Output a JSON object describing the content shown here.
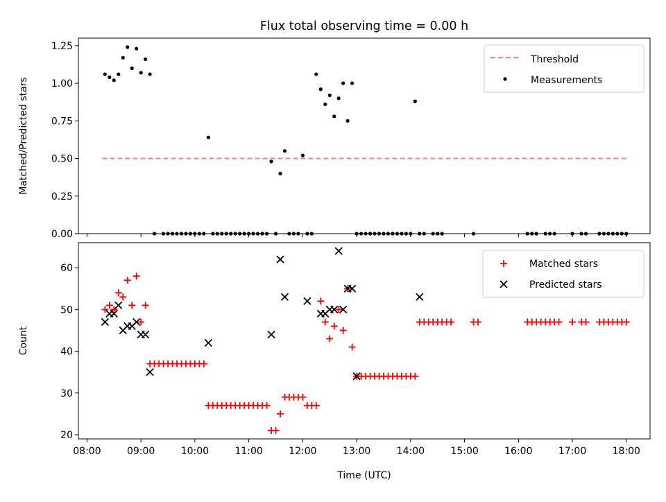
{
  "figure": {
    "title": "Flux total observing time = 0.00 h",
    "xlabel": "Time (UTC)",
    "xticks": [
      "08:00",
      "09:00",
      "10:00",
      "11:00",
      "12:00",
      "13:00",
      "14:00",
      "15:00",
      "16:00",
      "17:00",
      "18:00"
    ]
  },
  "colors": {
    "threshold": "#ff7f7f",
    "measurements": "#000000",
    "matched": "#ff0000",
    "predicted": "#000000"
  },
  "chart_data": [
    {
      "type": "scatter",
      "ylabel": "Matched/Predicted stars",
      "ylim": [
        0,
        1.3
      ],
      "yticks": [
        "0.00",
        "0.25",
        "0.50",
        "0.75",
        "1.00",
        "1.25"
      ],
      "legend_position": "top-right",
      "threshold": {
        "name": "Threshold",
        "x": [
          "08:17",
          "18:00"
        ],
        "y": 0.5
      },
      "series": [
        {
          "name": "Measurements",
          "points": [
            [
              "08:20",
              1.06
            ],
            [
              "08:25",
              1.04
            ],
            [
              "08:30",
              1.02
            ],
            [
              "08:35",
              1.06
            ],
            [
              "08:40",
              1.17
            ],
            [
              "08:45",
              1.24
            ],
            [
              "08:50",
              1.1
            ],
            [
              "08:55",
              1.23
            ],
            [
              "09:00",
              1.07
            ],
            [
              "09:05",
              1.16
            ],
            [
              "09:10",
              1.06
            ],
            [
              "09:15",
              0
            ],
            [
              "09:25",
              0
            ],
            [
              "09:30",
              0
            ],
            [
              "09:35",
              0
            ],
            [
              "09:40",
              0
            ],
            [
              "09:45",
              0
            ],
            [
              "09:50",
              0
            ],
            [
              "09:55",
              0
            ],
            [
              "10:00",
              0
            ],
            [
              "10:05",
              0
            ],
            [
              "10:10",
              0
            ],
            [
              "10:15",
              0.64
            ],
            [
              "10:20",
              0
            ],
            [
              "10:25",
              0
            ],
            [
              "10:30",
              0
            ],
            [
              "10:35",
              0
            ],
            [
              "10:40",
              0
            ],
            [
              "10:45",
              0
            ],
            [
              "10:50",
              0
            ],
            [
              "10:55",
              0
            ],
            [
              "11:00",
              0
            ],
            [
              "11:05",
              0
            ],
            [
              "11:10",
              0
            ],
            [
              "11:15",
              0
            ],
            [
              "11:20",
              0
            ],
            [
              "11:25",
              0.48
            ],
            [
              "11:30",
              0
            ],
            [
              "11:35",
              0.4
            ],
            [
              "11:40",
              0.55
            ],
            [
              "11:45",
              0
            ],
            [
              "11:50",
              0
            ],
            [
              "11:55",
              0
            ],
            [
              "12:00",
              0.52
            ],
            [
              "12:05",
              0
            ],
            [
              "12:10",
              0
            ],
            [
              "12:15",
              1.06
            ],
            [
              "12:20",
              0.96
            ],
            [
              "12:25",
              0.86
            ],
            [
              "12:30",
              0.92
            ],
            [
              "12:35",
              0.78
            ],
            [
              "12:40",
              0.9
            ],
            [
              "12:45",
              1.0
            ],
            [
              "12:50",
              0.75
            ],
            [
              "12:55",
              1.0
            ],
            [
              "13:00",
              0
            ],
            [
              "13:05",
              0
            ],
            [
              "13:10",
              0
            ],
            [
              "13:15",
              0
            ],
            [
              "13:20",
              0
            ],
            [
              "13:25",
              0
            ],
            [
              "13:30",
              0
            ],
            [
              "13:35",
              0
            ],
            [
              "13:40",
              0
            ],
            [
              "13:45",
              0
            ],
            [
              "13:50",
              0
            ],
            [
              "13:55",
              0
            ],
            [
              "14:00",
              0
            ],
            [
              "14:05",
              0.88
            ],
            [
              "14:10",
              0
            ],
            [
              "14:15",
              0
            ],
            [
              "14:25",
              0
            ],
            [
              "14:30",
              0
            ],
            [
              "14:35",
              0
            ],
            [
              "15:10",
              0
            ],
            [
              "16:10",
              0
            ],
            [
              "16:15",
              0
            ],
            [
              "16:20",
              0
            ],
            [
              "16:30",
              0
            ],
            [
              "16:35",
              0
            ],
            [
              "16:40",
              0
            ],
            [
              "17:00",
              0
            ],
            [
              "17:10",
              0
            ],
            [
              "17:15",
              0
            ],
            [
              "17:30",
              0
            ],
            [
              "17:35",
              0
            ],
            [
              "17:40",
              0
            ],
            [
              "17:45",
              0
            ],
            [
              "17:50",
              0
            ],
            [
              "17:55",
              0
            ],
            [
              "18:00",
              0
            ]
          ]
        }
      ]
    },
    {
      "type": "scatter",
      "ylabel": "Count",
      "ylim": [
        19,
        66
      ],
      "yticks": [
        "20",
        "30",
        "40",
        "50",
        "60"
      ],
      "legend_position": "top-right",
      "series": [
        {
          "name": "Matched stars",
          "marker": "plus",
          "points": [
            [
              "08:20",
              50
            ],
            [
              "08:25",
              51
            ],
            [
              "08:30",
              50
            ],
            [
              "08:35",
              54
            ],
            [
              "08:40",
              53
            ],
            [
              "08:45",
              57
            ],
            [
              "08:50",
              51
            ],
            [
              "08:55",
              58
            ],
            [
              "09:00",
              47
            ],
            [
              "09:05",
              51
            ],
            [
              "09:10",
              37
            ],
            [
              "09:15",
              37
            ],
            [
              "09:20",
              37
            ],
            [
              "09:25",
              37
            ],
            [
              "09:30",
              37
            ],
            [
              "09:35",
              37
            ],
            [
              "09:40",
              37
            ],
            [
              "09:45",
              37
            ],
            [
              "09:50",
              37
            ],
            [
              "09:55",
              37
            ],
            [
              "10:00",
              37
            ],
            [
              "10:05",
              37
            ],
            [
              "10:10",
              37
            ],
            [
              "10:15",
              27
            ],
            [
              "10:20",
              27
            ],
            [
              "10:25",
              27
            ],
            [
              "10:30",
              27
            ],
            [
              "10:35",
              27
            ],
            [
              "10:40",
              27
            ],
            [
              "10:45",
              27
            ],
            [
              "10:50",
              27
            ],
            [
              "10:55",
              27
            ],
            [
              "11:00",
              27
            ],
            [
              "11:05",
              27
            ],
            [
              "11:10",
              27
            ],
            [
              "11:15",
              27
            ],
            [
              "11:20",
              27
            ],
            [
              "11:25",
              21
            ],
            [
              "11:30",
              21
            ],
            [
              "11:35",
              25
            ],
            [
              "11:40",
              29
            ],
            [
              "11:45",
              29
            ],
            [
              "11:50",
              29
            ],
            [
              "11:55",
              29
            ],
            [
              "12:00",
              29
            ],
            [
              "12:05",
              27
            ],
            [
              "12:10",
              27
            ],
            [
              "12:15",
              27
            ],
            [
              "12:20",
              52
            ],
            [
              "12:25",
              47
            ],
            [
              "12:30",
              43
            ],
            [
              "12:35",
              46
            ],
            [
              "12:40",
              50
            ],
            [
              "12:45",
              45
            ],
            [
              "12:50",
              55
            ],
            [
              "12:55",
              41
            ],
            [
              "13:00",
              34
            ],
            [
              "13:05",
              34
            ],
            [
              "13:10",
              34
            ],
            [
              "13:15",
              34
            ],
            [
              "13:20",
              34
            ],
            [
              "13:25",
              34
            ],
            [
              "13:30",
              34
            ],
            [
              "13:35",
              34
            ],
            [
              "13:40",
              34
            ],
            [
              "13:45",
              34
            ],
            [
              "13:50",
              34
            ],
            [
              "13:55",
              34
            ],
            [
              "14:00",
              34
            ],
            [
              "14:05",
              34
            ],
            [
              "14:10",
              47
            ],
            [
              "14:15",
              47
            ],
            [
              "14:20",
              47
            ],
            [
              "14:25",
              47
            ],
            [
              "14:30",
              47
            ],
            [
              "14:35",
              47
            ],
            [
              "14:40",
              47
            ],
            [
              "14:45",
              47
            ],
            [
              "15:10",
              47
            ],
            [
              "15:15",
              47
            ],
            [
              "16:10",
              47
            ],
            [
              "16:15",
              47
            ],
            [
              "16:20",
              47
            ],
            [
              "16:25",
              47
            ],
            [
              "16:30",
              47
            ],
            [
              "16:35",
              47
            ],
            [
              "16:40",
              47
            ],
            [
              "16:45",
              47
            ],
            [
              "17:00",
              47
            ],
            [
              "17:10",
              47
            ],
            [
              "17:15",
              47
            ],
            [
              "17:30",
              47
            ],
            [
              "17:35",
              47
            ],
            [
              "17:40",
              47
            ],
            [
              "17:45",
              47
            ],
            [
              "17:50",
              47
            ],
            [
              "17:55",
              47
            ],
            [
              "18:00",
              47
            ]
          ]
        },
        {
          "name": "Predicted stars",
          "marker": "x",
          "points": [
            [
              "08:20",
              47
            ],
            [
              "08:25",
              49
            ],
            [
              "08:30",
              49
            ],
            [
              "08:35",
              51
            ],
            [
              "08:40",
              45
            ],
            [
              "08:45",
              46
            ],
            [
              "08:50",
              46
            ],
            [
              "08:55",
              47
            ],
            [
              "09:00",
              44
            ],
            [
              "09:05",
              44
            ],
            [
              "09:10",
              35
            ],
            [
              "10:15",
              42
            ],
            [
              "11:25",
              44
            ],
            [
              "11:35",
              62
            ],
            [
              "11:40",
              53
            ],
            [
              "12:05",
              52
            ],
            [
              "12:20",
              49
            ],
            [
              "12:25",
              49
            ],
            [
              "12:30",
              50
            ],
            [
              "12:35",
              50
            ],
            [
              "12:40",
              64
            ],
            [
              "12:45",
              50
            ],
            [
              "12:50",
              55
            ],
            [
              "12:55",
              55
            ],
            [
              "13:00",
              34
            ],
            [
              "14:10",
              53
            ]
          ]
        }
      ]
    }
  ]
}
